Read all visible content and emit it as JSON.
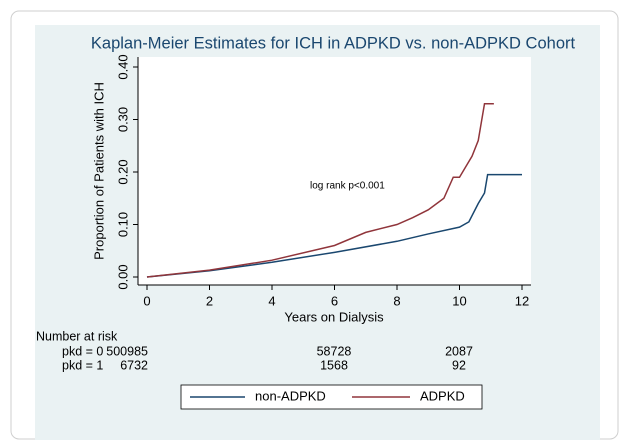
{
  "chart_data": {
    "type": "line",
    "title": "Kaplan-Meier Estimates for ICH in ADPKD vs. non-ADPKD Cohort",
    "x_label": "Years on Dialysis",
    "y_label": "Proportion of Patients with ICH",
    "annotation": "log rank p<0.001",
    "xlim": [
      0,
      12
    ],
    "xticks": [
      0,
      2,
      4,
      6,
      8,
      10,
      12
    ],
    "ylim": [
      0,
      0.4
    ],
    "yticks": [
      {
        "value": 0,
        "label": "0.00"
      },
      {
        "value": 0.1,
        "label": "0.10"
      },
      {
        "value": 0.2,
        "label": "0.20"
      },
      {
        "value": 0.3,
        "label": "0.30"
      },
      {
        "value": 0.4,
        "label": "0.40"
      }
    ],
    "series": [
      {
        "name": "non-ADPKD",
        "color": "#1a476f",
        "x": [
          0,
          2,
          4,
          6,
          8,
          9,
          10,
          10.3,
          10.6,
          10.8,
          10.9,
          11,
          12
        ],
        "values": [
          0,
          0.012,
          0.028,
          0.047,
          0.068,
          0.082,
          0.095,
          0.105,
          0.14,
          0.16,
          0.195,
          0.195,
          0.195
        ]
      },
      {
        "name": "ADPKD",
        "color": "#90353b",
        "x": [
          0,
          2,
          4,
          6,
          7,
          8,
          8.5,
          9,
          9.5,
          9.8,
          10,
          10.2,
          10.4,
          10.6,
          10.8,
          11.1
        ],
        "values": [
          0,
          0.013,
          0.032,
          0.06,
          0.085,
          0.1,
          0.113,
          0.128,
          0.15,
          0.19,
          0.19,
          0.21,
          0.23,
          0.26,
          0.33,
          0.33
        ]
      }
    ],
    "risk_table": {
      "title": "Number at risk",
      "rows": [
        {
          "label": "pkd = 0",
          "values": [
            500985,
            58728,
            2087
          ]
        },
        {
          "label": "pkd = 1",
          "values": [
            6732,
            1568,
            92
          ]
        }
      ]
    }
  }
}
